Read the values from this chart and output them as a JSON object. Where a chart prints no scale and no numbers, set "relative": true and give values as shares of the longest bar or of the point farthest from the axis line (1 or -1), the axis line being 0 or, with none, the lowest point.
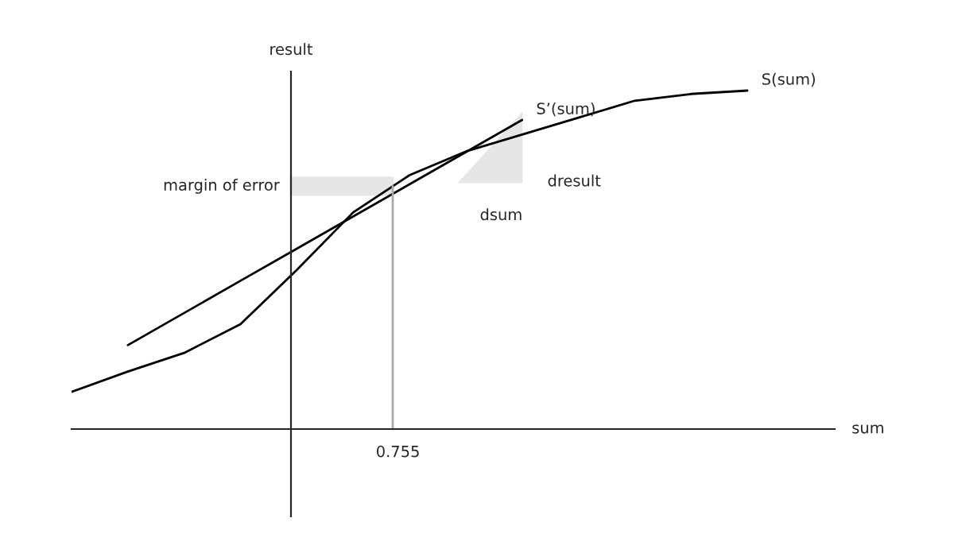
{
  "chart_data": {
    "type": "line",
    "relative": true,
    "xlabel": "sum",
    "ylabel": "result",
    "categories": [
      null,
      null,
      null,
      null,
      null,
      null,
      null,
      null,
      null,
      null,
      null,
      null,
      null
    ],
    "series": [
      {
        "name": "S(sum)",
        "color": "#000000",
        "values": [
          0.11,
          0.17,
          0.225,
          0.31,
          0.47,
          0.64,
          0.75,
          0.82,
          0.87,
          0.92,
          0.97,
          0.99,
          1
        ]
      },
      {
        "name": "S’(sum)",
        "color": "#000000",
        "values": [
          null,
          0.248,
          0.343,
          0.438,
          0.533,
          0.628,
          0.723,
          0.818,
          0.913,
          null,
          null,
          null,
          null
        ]
      }
    ],
    "annotations": [
      "margin of error",
      "dsum",
      "dresult",
      "0.755"
    ],
    "grid": false,
    "legend": false,
    "marker": "none",
    "line_style": "solid"
  }
}
